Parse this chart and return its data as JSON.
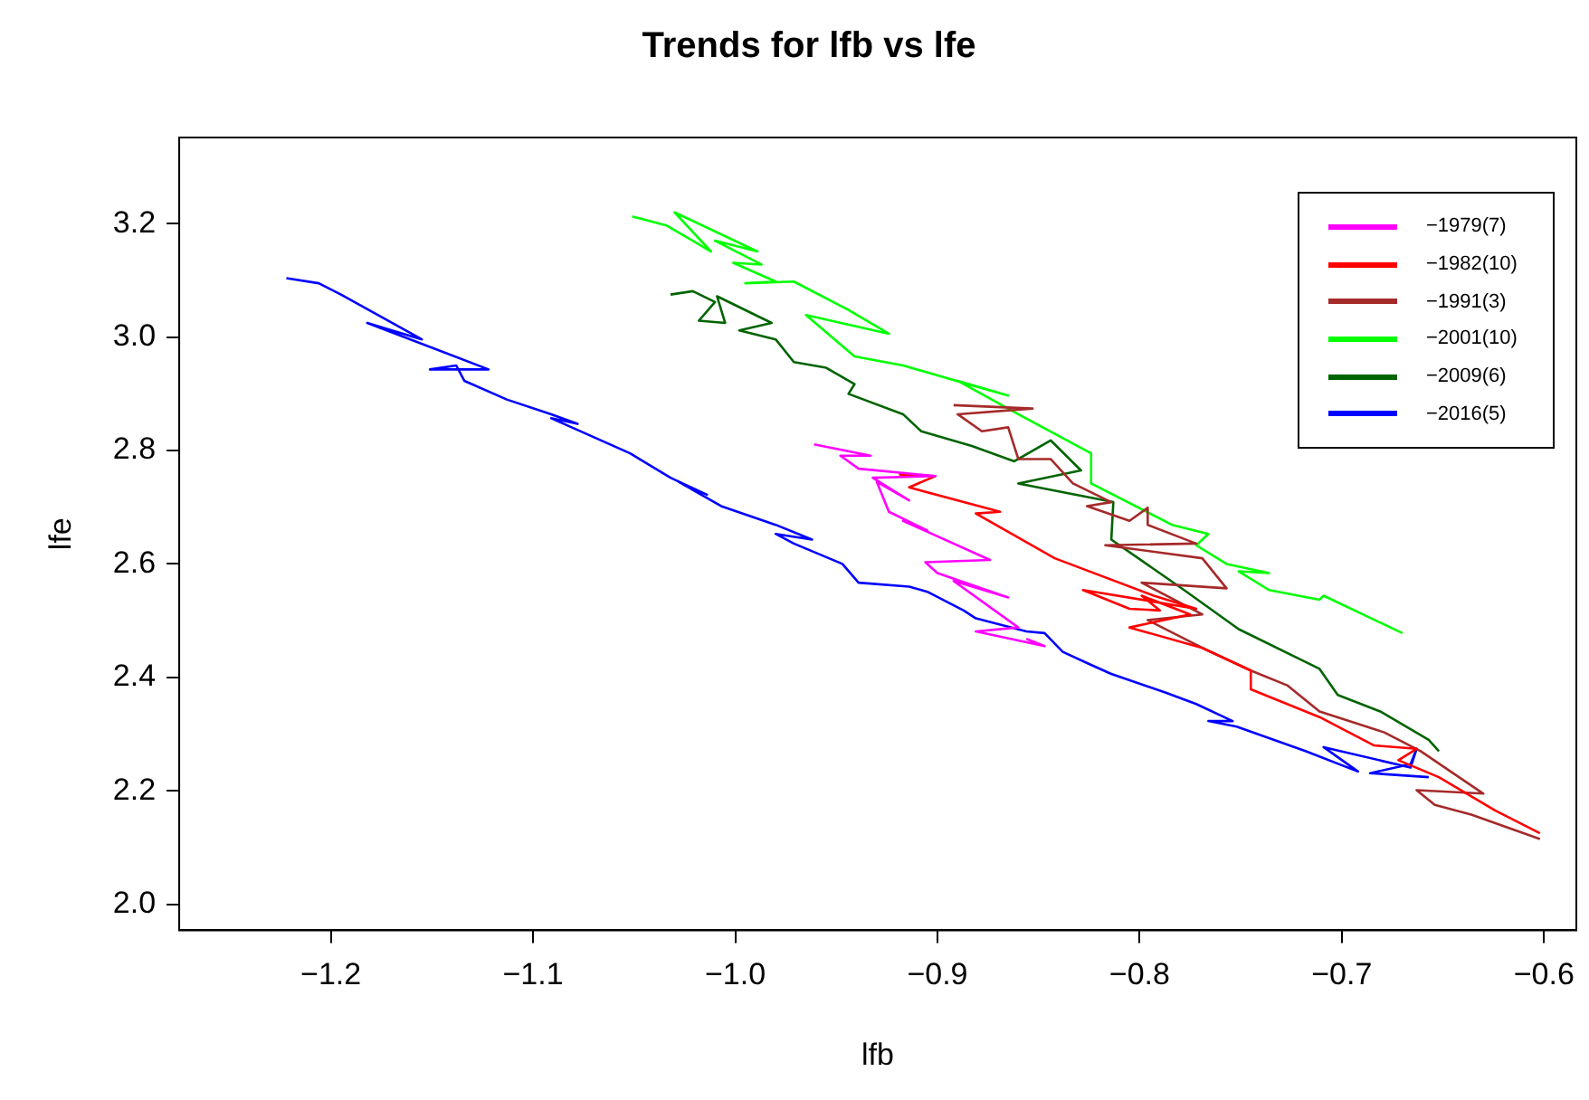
{
  "chart_data": {
    "type": "line",
    "title": "Trends for lfb vs lfe",
    "xlabel": "lfb",
    "ylabel": "lfe",
    "xlim": [
      -1.275,
      -0.584
    ],
    "ylim": [
      1.954,
      3.352
    ],
    "xticks": [
      {
        "value": -1.2,
        "label": "−1.2"
      },
      {
        "value": -1.1,
        "label": "−1.1"
      },
      {
        "value": -1.0,
        "label": "−1.0"
      },
      {
        "value": -0.9,
        "label": "−0.9"
      },
      {
        "value": -0.8,
        "label": "−0.8"
      },
      {
        "value": -0.7,
        "label": "−0.7"
      },
      {
        "value": -0.6,
        "label": "−0.6"
      }
    ],
    "yticks": [
      {
        "value": 2.0,
        "label": "2.0"
      },
      {
        "value": 2.2,
        "label": "2.2"
      },
      {
        "value": 2.4,
        "label": "2.4"
      },
      {
        "value": 2.6,
        "label": "2.6"
      },
      {
        "value": 2.8,
        "label": "2.8"
      },
      {
        "value": 3.0,
        "label": "3.0"
      },
      {
        "value": 3.2,
        "label": "3.2"
      }
    ],
    "grid": false,
    "legend": "top right",
    "series": [
      {
        "name": "−1979(7)",
        "color": "#ff00ff",
        "x": [
          -0.961,
          -0.933,
          -0.948,
          -0.939,
          -0.901,
          -0.932,
          -0.914,
          -0.93,
          -0.924,
          -0.905,
          -0.917,
          -0.874,
          -0.906,
          -0.9,
          -0.865,
          -0.892,
          -0.86,
          -0.881,
          -0.847,
          -0.856
        ],
        "values": [
          2.811,
          2.791,
          2.791,
          2.768,
          2.755,
          2.752,
          2.712,
          2.745,
          2.692,
          2.659,
          2.676,
          2.607,
          2.603,
          2.584,
          2.541,
          2.57,
          2.488,
          2.481,
          2.455,
          2.468
        ]
      },
      {
        "name": "−1982(10)",
        "color": "#ff0000",
        "x": [
          -0.919,
          -0.901,
          -0.914,
          -0.869,
          -0.881,
          -0.842,
          -0.793,
          -0.772,
          -0.828,
          -0.805,
          -0.79,
          -0.799,
          -0.775,
          -0.805,
          -0.769,
          -0.745,
          -0.745,
          -0.711,
          -0.684,
          -0.663,
          -0.672,
          -0.652,
          -0.624,
          -0.602
        ],
        "values": [
          2.758,
          2.755,
          2.735,
          2.692,
          2.689,
          2.61,
          2.544,
          2.521,
          2.554,
          2.521,
          2.518,
          2.544,
          2.511,
          2.488,
          2.452,
          2.412,
          2.379,
          2.33,
          2.28,
          2.274,
          2.254,
          2.224,
          2.165,
          2.125
        ]
      },
      {
        "name": "−1991(3)",
        "color": "#a52a2a",
        "x": [
          -0.892,
          -0.853,
          -0.89,
          -0.878,
          -0.865,
          -0.86,
          -0.844,
          -0.833,
          -0.814,
          -0.826,
          -0.805,
          -0.796,
          -0.796,
          -0.772,
          -0.817,
          -0.769,
          -0.757,
          -0.799,
          -0.769,
          -0.796,
          -0.769,
          -0.745,
          -0.727,
          -0.711,
          -0.679,
          -0.661,
          -0.63,
          -0.663,
          -0.654,
          -0.636,
          -0.602
        ],
        "values": [
          2.88,
          2.874,
          2.864,
          2.834,
          2.841,
          2.785,
          2.785,
          2.742,
          2.709,
          2.702,
          2.676,
          2.699,
          2.669,
          2.636,
          2.633,
          2.61,
          2.557,
          2.567,
          2.511,
          2.501,
          2.452,
          2.412,
          2.386,
          2.34,
          2.303,
          2.27,
          2.195,
          2.201,
          2.175,
          2.158,
          2.115
        ]
      },
      {
        "name": "−2001(10)",
        "color": "#00ff00",
        "x": [
          -1.051,
          -1.034,
          -1.012,
          -1.03,
          -0.989,
          -1.01,
          -0.987,
          -1.001,
          -0.98,
          -0.995,
          -0.971,
          -0.944,
          -0.924,
          -0.965,
          -0.941,
          -0.917,
          -0.881,
          -0.865,
          -0.89,
          -0.86,
          -0.824,
          -0.824,
          -0.784,
          -0.766,
          -0.772,
          -0.757,
          -0.736,
          -0.751,
          -0.736,
          -0.711,
          -0.709,
          -0.67
        ],
        "values": [
          3.213,
          3.197,
          3.151,
          3.22,
          3.151,
          3.17,
          3.128,
          3.131,
          3.098,
          3.095,
          3.098,
          3.048,
          3.006,
          3.039,
          2.966,
          2.95,
          2.913,
          2.897,
          2.923,
          2.864,
          2.795,
          2.742,
          2.669,
          2.653,
          2.633,
          2.6,
          2.584,
          2.587,
          2.554,
          2.537,
          2.544,
          2.478
        ]
      },
      {
        "name": "−2009(6)",
        "color": "#006400",
        "x": [
          -1.032,
          -1.021,
          -1.01,
          -1.018,
          -1.005,
          -1.009,
          -0.982,
          -0.998,
          -0.98,
          -0.971,
          -0.955,
          -0.941,
          -0.944,
          -0.917,
          -0.908,
          -0.883,
          -0.862,
          -0.844,
          -0.829,
          -0.86,
          -0.813,
          -0.814,
          -0.778,
          -0.751,
          -0.711,
          -0.702,
          -0.681,
          -0.657,
          -0.652
        ],
        "values": [
          3.075,
          3.081,
          3.062,
          3.029,
          3.025,
          3.072,
          3.025,
          3.012,
          2.996,
          2.956,
          2.946,
          2.917,
          2.9,
          2.864,
          2.834,
          2.808,
          2.781,
          2.818,
          2.765,
          2.742,
          2.709,
          2.643,
          2.554,
          2.485,
          2.415,
          2.369,
          2.34,
          2.29,
          2.27
        ]
      },
      {
        "name": "−2016(5)",
        "color": "#0000ff",
        "x": [
          -1.222,
          -1.206,
          -1.195,
          -1.155,
          -1.182,
          -1.122,
          -1.151,
          -1.138,
          -1.134,
          -1.113,
          -1.091,
          -1.078,
          -1.091,
          -1.052,
          -1.032,
          -1.014,
          -1.028,
          -1.007,
          -0.98,
          -0.962,
          -0.98,
          -0.971,
          -0.947,
          -0.939,
          -0.914,
          -0.905,
          -0.887,
          -0.881,
          -0.856,
          -0.847,
          -0.838,
          -0.824,
          -0.814,
          -0.787,
          -0.772,
          -0.754,
          -0.766,
          -0.752,
          -0.718,
          -0.692,
          -0.709,
          -0.666,
          -0.663,
          -0.666,
          -0.686,
          -0.657
        ],
        "values": [
          3.104,
          3.095,
          3.075,
          2.996,
          3.025,
          2.943,
          2.943,
          2.95,
          2.923,
          2.89,
          2.864,
          2.847,
          2.857,
          2.795,
          2.752,
          2.722,
          2.745,
          2.702,
          2.669,
          2.643,
          2.653,
          2.636,
          2.6,
          2.567,
          2.56,
          2.551,
          2.518,
          2.504,
          2.481,
          2.478,
          2.445,
          2.422,
          2.406,
          2.373,
          2.353,
          2.323,
          2.323,
          2.313,
          2.27,
          2.234,
          2.277,
          2.241,
          2.274,
          2.247,
          2.231,
          2.224
        ]
      }
    ]
  }
}
